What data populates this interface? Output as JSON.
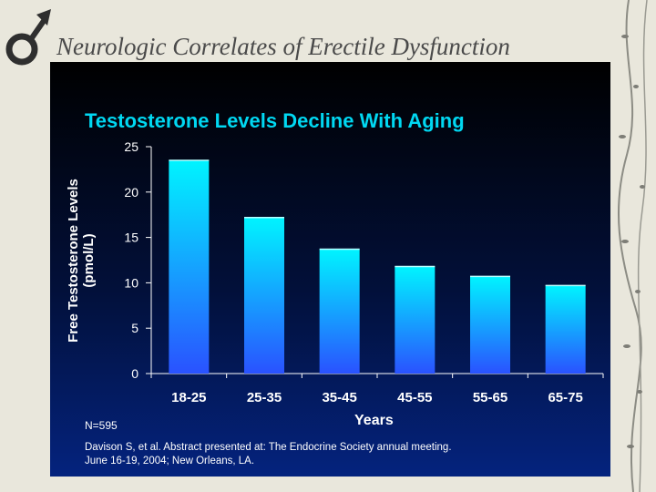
{
  "slide": {
    "title": "Neurologic Correlates of Erectile Dysfunction"
  },
  "colors": {
    "chart_title": "#00d8f2",
    "bar_top": "#00f4ff",
    "bar_bottom": "#2a52ff",
    "panel_background": "#02103a"
  },
  "icons": {
    "logo": "male-symbol-icon",
    "decoration": "vine-decoration"
  },
  "chart_data": {
    "type": "bar",
    "title": "Testosterone Levels Decline With Aging",
    "ylabel_line1": "Free Testosterone Levels",
    "ylabel_line2": "(pmol/L)",
    "xlabel": "Years",
    "categories": [
      "18-25",
      "25-35",
      "35-45",
      "45-55",
      "55-65",
      "65-75"
    ],
    "values": [
      23.5,
      17.2,
      13.7,
      11.8,
      10.7,
      9.7
    ],
    "ylim": [
      0,
      25
    ],
    "yticks": [
      0,
      5,
      10,
      15,
      20,
      25
    ],
    "grid": false,
    "note": "N=595",
    "citation_line1": "Davison S, et al. Abstract presented at: The Endocrine Society annual meeting.",
    "citation_line2": "June 16-19, 2004; New Orleans, LA."
  }
}
